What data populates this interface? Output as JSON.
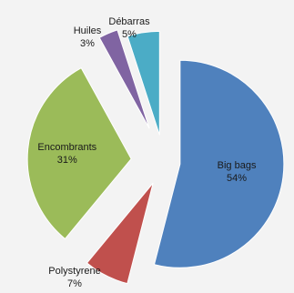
{
  "chart_data": {
    "type": "pie",
    "exploded": true,
    "slices": [
      {
        "label": "Big bags",
        "value": 54,
        "value_label": "54%",
        "color": "#4f81bd"
      },
      {
        "label": "Polystyrene",
        "value": 7,
        "value_label": "7%",
        "color": "#c0504d"
      },
      {
        "label": "Encombrants",
        "value": 31,
        "value_label": "31%",
        "color": "#9bbb59"
      },
      {
        "label": "Huiles",
        "value": 3,
        "value_label": "3%",
        "color": "#8064a2"
      },
      {
        "label": "Débarras",
        "value": 5,
        "value_label": "5%",
        "color": "#4bacc6"
      }
    ]
  }
}
